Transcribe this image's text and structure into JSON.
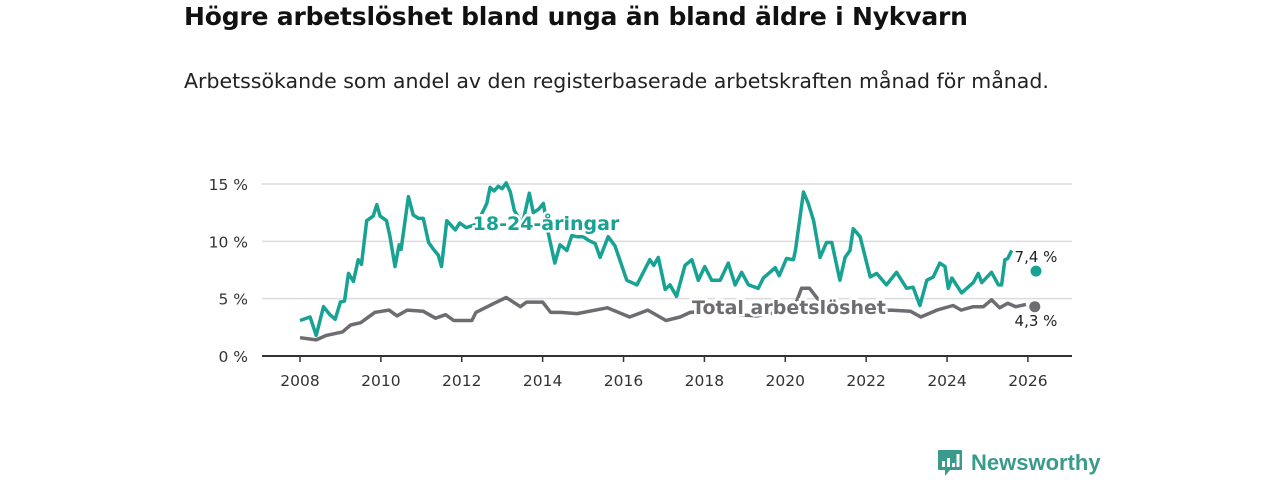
{
  "title": "Högre arbetslöshet bland unga än bland äldre i Nykvarn",
  "subtitle": "Arbetssökande som andel av den registerbaserade arbetskraften månad för månad.",
  "brand": {
    "name": "Newsworthy",
    "icon": "newsworthy-logo-icon",
    "color": "#3a9a8c"
  },
  "chart_data": {
    "type": "line",
    "title": "Högre arbetslöshet bland unga än bland äldre i Nykvarn",
    "xlabel": "",
    "ylabel": "",
    "xlim": [
      2007.1,
      2027.0
    ],
    "ylim": [
      0,
      15
    ],
    "xticks": [
      2008,
      2010,
      2012,
      2014,
      2016,
      2018,
      2020,
      2022,
      2024,
      2026
    ],
    "xtick_labels": [
      "2008",
      "2010",
      "2012",
      "2014",
      "2016",
      "2018",
      "2020",
      "2022",
      "2024",
      "2026"
    ],
    "yticks": [
      0,
      5,
      10,
      15
    ],
    "ytick_labels": [
      "0 %",
      "5 %",
      "10 %",
      "15 %"
    ],
    "grid": true,
    "series": [
      {
        "name": "18-24-åringar",
        "color": "#17a293",
        "end_label": "7,4 %",
        "end_point": [
          2026.2,
          7.4
        ],
        "points": [
          [
            2008.0,
            3.1
          ],
          [
            2008.25,
            3.4
          ],
          [
            2008.4,
            1.8
          ],
          [
            2008.58,
            4.3
          ],
          [
            2008.74,
            3.6
          ],
          [
            2008.87,
            3.2
          ],
          [
            2009.0,
            4.7
          ],
          [
            2009.1,
            4.8
          ],
          [
            2009.2,
            7.2
          ],
          [
            2009.32,
            6.5
          ],
          [
            2009.44,
            8.4
          ],
          [
            2009.52,
            8.0
          ],
          [
            2009.65,
            11.8
          ],
          [
            2009.81,
            12.2
          ],
          [
            2009.9,
            13.2
          ],
          [
            2009.98,
            12.2
          ],
          [
            2010.14,
            11.8
          ],
          [
            2010.22,
            10.5
          ],
          [
            2010.35,
            7.8
          ],
          [
            2010.45,
            9.7
          ],
          [
            2010.5,
            9.3
          ],
          [
            2010.68,
            13.9
          ],
          [
            2010.8,
            12.3
          ],
          [
            2010.93,
            12.0
          ],
          [
            2011.05,
            12.0
          ],
          [
            2011.18,
            9.9
          ],
          [
            2011.3,
            9.3
          ],
          [
            2011.42,
            8.8
          ],
          [
            2011.5,
            7.8
          ],
          [
            2011.63,
            11.8
          ],
          [
            2011.84,
            11.0
          ],
          [
            2011.95,
            11.6
          ],
          [
            2012.11,
            11.2
          ],
          [
            2012.37,
            11.5
          ],
          [
            2012.62,
            13.3
          ],
          [
            2012.7,
            14.7
          ],
          [
            2012.8,
            14.4
          ],
          [
            2012.9,
            14.8
          ],
          [
            2013.0,
            14.6
          ],
          [
            2013.1,
            15.1
          ],
          [
            2013.2,
            14.3
          ],
          [
            2013.3,
            12.7
          ],
          [
            2013.5,
            11.5
          ],
          [
            2013.67,
            14.2
          ],
          [
            2013.77,
            12.5
          ],
          [
            2013.9,
            12.8
          ],
          [
            2014.02,
            13.3
          ],
          [
            2014.14,
            10.7
          ],
          [
            2014.3,
            8.1
          ],
          [
            2014.43,
            9.7
          ],
          [
            2014.6,
            9.2
          ],
          [
            2014.72,
            10.5
          ],
          [
            2014.85,
            10.4
          ],
          [
            2015.0,
            10.4
          ],
          [
            2015.13,
            10.1
          ],
          [
            2015.3,
            9.8
          ],
          [
            2015.42,
            8.6
          ],
          [
            2015.62,
            10.4
          ],
          [
            2015.79,
            9.6
          ],
          [
            2016.08,
            6.6
          ],
          [
            2016.33,
            6.2
          ],
          [
            2016.65,
            8.4
          ],
          [
            2016.75,
            7.9
          ],
          [
            2016.86,
            8.6
          ],
          [
            2017.03,
            5.8
          ],
          [
            2017.15,
            6.2
          ],
          [
            2017.31,
            5.2
          ],
          [
            2017.52,
            7.9
          ],
          [
            2017.69,
            8.4
          ],
          [
            2017.85,
            6.6
          ],
          [
            2018.01,
            7.8
          ],
          [
            2018.18,
            6.6
          ],
          [
            2018.39,
            6.6
          ],
          [
            2018.59,
            8.1
          ],
          [
            2018.76,
            6.2
          ],
          [
            2018.92,
            7.3
          ],
          [
            2019.09,
            6.2
          ],
          [
            2019.33,
            5.9
          ],
          [
            2019.46,
            6.8
          ],
          [
            2019.75,
            7.7
          ],
          [
            2019.85,
            7.0
          ],
          [
            2020.03,
            8.5
          ],
          [
            2020.2,
            8.4
          ],
          [
            2020.25,
            9.2
          ],
          [
            2020.45,
            14.3
          ],
          [
            2020.57,
            13.3
          ],
          [
            2020.7,
            11.8
          ],
          [
            2020.86,
            8.6
          ],
          [
            2021.02,
            9.9
          ],
          [
            2021.15,
            9.9
          ],
          [
            2021.35,
            6.6
          ],
          [
            2021.48,
            8.6
          ],
          [
            2021.6,
            9.2
          ],
          [
            2021.68,
            11.1
          ],
          [
            2021.85,
            10.4
          ],
          [
            2022.1,
            6.9
          ],
          [
            2022.26,
            7.2
          ],
          [
            2022.5,
            6.2
          ],
          [
            2022.75,
            7.3
          ],
          [
            2023.0,
            5.9
          ],
          [
            2023.16,
            6.0
          ],
          [
            2023.33,
            4.4
          ],
          [
            2023.5,
            6.6
          ],
          [
            2023.66,
            6.9
          ],
          [
            2023.82,
            8.1
          ],
          [
            2023.95,
            7.8
          ],
          [
            2024.03,
            5.9
          ],
          [
            2024.12,
            6.8
          ],
          [
            2024.36,
            5.5
          ],
          [
            2024.65,
            6.4
          ],
          [
            2024.77,
            7.2
          ],
          [
            2024.86,
            6.4
          ],
          [
            2025.1,
            7.3
          ],
          [
            2025.27,
            6.2
          ],
          [
            2025.35,
            6.2
          ],
          [
            2025.43,
            8.4
          ],
          [
            2025.5,
            8.5
          ],
          [
            2025.6,
            9.2
          ]
        ]
      },
      {
        "name": "Total arbetslöshet",
        "color": "#6e6c71",
        "end_label": "4,3 %",
        "end_point": [
          2026.17,
          4.3
        ],
        "points": [
          [
            2008.0,
            1.6
          ],
          [
            2008.4,
            1.4
          ],
          [
            2008.65,
            1.8
          ],
          [
            2009.05,
            2.1
          ],
          [
            2009.25,
            2.7
          ],
          [
            2009.5,
            2.9
          ],
          [
            2009.85,
            3.8
          ],
          [
            2010.2,
            4.0
          ],
          [
            2010.4,
            3.5
          ],
          [
            2010.65,
            4.0
          ],
          [
            2011.05,
            3.9
          ],
          [
            2011.35,
            3.3
          ],
          [
            2011.6,
            3.6
          ],
          [
            2011.8,
            3.1
          ],
          [
            2012.25,
            3.1
          ],
          [
            2012.35,
            3.8
          ],
          [
            2012.8,
            4.6
          ],
          [
            2013.1,
            5.1
          ],
          [
            2013.45,
            4.3
          ],
          [
            2013.6,
            4.7
          ],
          [
            2014.0,
            4.7
          ],
          [
            2014.2,
            3.8
          ],
          [
            2014.45,
            3.8
          ],
          [
            2014.85,
            3.7
          ],
          [
            2015.6,
            4.2
          ],
          [
            2016.15,
            3.4
          ],
          [
            2016.6,
            4.0
          ],
          [
            2017.05,
            3.1
          ],
          [
            2017.4,
            3.4
          ],
          [
            2017.65,
            3.8
          ],
          [
            2018.2,
            3.9
          ],
          [
            2018.8,
            3.6
          ],
          [
            2019.3,
            3.5
          ],
          [
            2019.8,
            3.8
          ],
          [
            2020.2,
            4.0
          ],
          [
            2020.4,
            5.9
          ],
          [
            2020.6,
            5.9
          ],
          [
            2020.8,
            5.0
          ],
          [
            2021.2,
            4.4
          ],
          [
            2021.8,
            4.2
          ],
          [
            2022.3,
            3.9
          ],
          [
            2022.6,
            4.0
          ],
          [
            2023.1,
            3.9
          ],
          [
            2023.35,
            3.4
          ],
          [
            2023.75,
            4.0
          ],
          [
            2024.15,
            4.4
          ],
          [
            2024.35,
            4.0
          ],
          [
            2024.65,
            4.3
          ],
          [
            2024.9,
            4.3
          ],
          [
            2025.1,
            4.9
          ],
          [
            2025.3,
            4.2
          ],
          [
            2025.5,
            4.6
          ],
          [
            2025.7,
            4.3
          ],
          [
            2025.95,
            4.5
          ]
        ]
      }
    ]
  }
}
